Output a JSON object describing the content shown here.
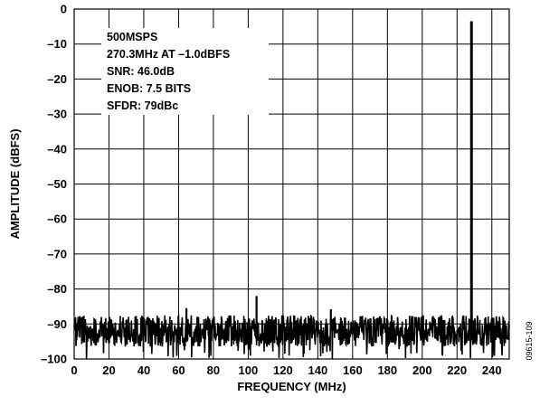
{
  "chart_data": {
    "type": "line",
    "title": "",
    "xlabel": "FREQUENCY (MHz)",
    "ylabel": "AMPLITUDE (dBFS)",
    "xlim": [
      0,
      250
    ],
    "ylim": [
      -100,
      0
    ],
    "x_ticks": [
      0,
      20,
      40,
      60,
      80,
      100,
      120,
      140,
      160,
      180,
      200,
      220,
      240
    ],
    "y_ticks": [
      0,
      -10,
      -20,
      -30,
      -40,
      -50,
      -60,
      -70,
      -80,
      -90,
      -100
    ],
    "x_tick_labels": [
      "0",
      "20",
      "40",
      "60",
      "80",
      "100",
      "120",
      "140",
      "160",
      "180",
      "200",
      "220",
      "240"
    ],
    "y_tick_labels": [
      "0",
      "–10",
      "–20",
      "–30",
      "–40",
      "–50",
      "–60",
      "–70",
      "–80",
      "–90",
      "–100"
    ],
    "grid": true,
    "legend": "none",
    "annotations": [
      "500MSPS",
      "270.3MHz AT –1.0dBFS",
      "SNR: 46.0dB",
      "ENOB: 7.5 BITS",
      "SFDR: 79dBc"
    ],
    "noise_floor": {
      "low": -97,
      "high": -88,
      "typical": -92
    },
    "peaks": [
      {
        "x": 228.3,
        "y": -3.5
      },
      {
        "x": 104.8,
        "y": -82
      },
      {
        "x": 64.5,
        "y": -85.5
      },
      {
        "x": 147.5,
        "y": -85.8
      }
    ],
    "figure_id": "09615-109"
  },
  "colors": {
    "trace": "#000000",
    "grid": "#000000",
    "background": "#ffffff"
  }
}
